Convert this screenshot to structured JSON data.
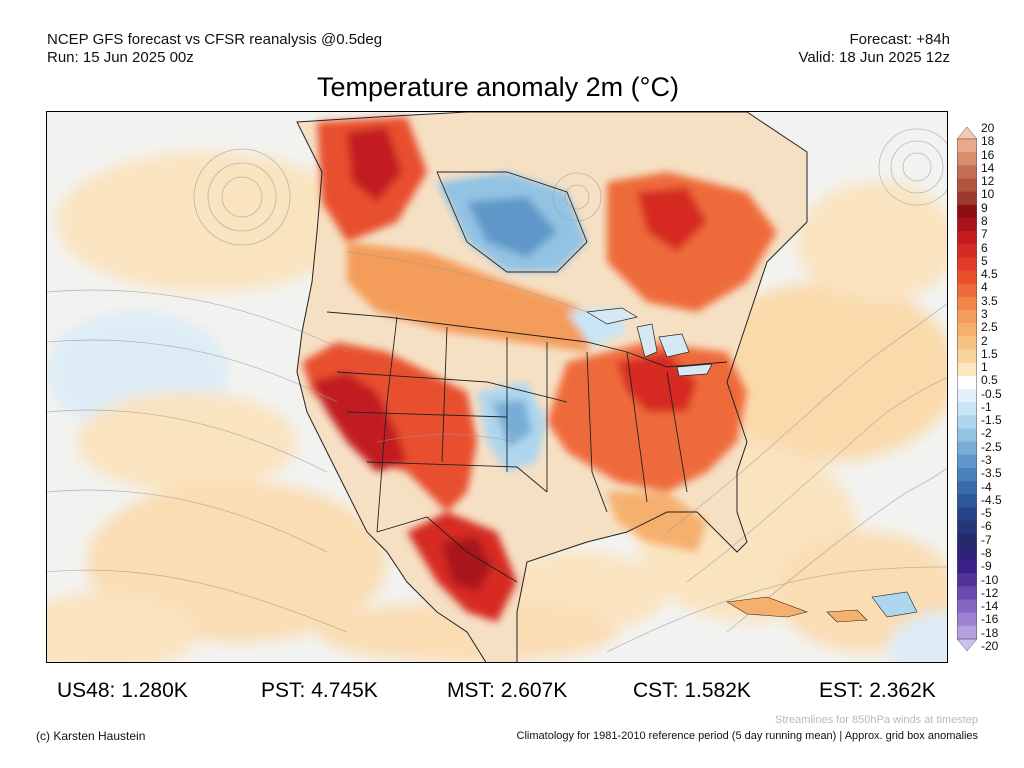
{
  "header": {
    "left_line1": "NCEP GFS forecast vs CFSR reanalysis @0.5deg",
    "left_line2": "Run: 15 Jun 2025 00z",
    "right_line1": "Forecast: +84h",
    "right_line2": "Valid: 18 Jun 2025 12z"
  },
  "title": "Temperature anomaly 2m (°C)",
  "colorbar": {
    "ticks": [
      "20",
      "18",
      "16",
      "14",
      "12",
      "10",
      "9",
      "8",
      "7",
      "6",
      "5",
      "4.5",
      "4",
      "3.5",
      "3",
      "2.5",
      "2",
      "1.5",
      "1",
      "0.5",
      "-0.5",
      "-1",
      "-1.5",
      "-2",
      "-2.5",
      "-3",
      "-3.5",
      "-4",
      "-4.5",
      "-5",
      "-6",
      "-7",
      "-8",
      "-9",
      "-10",
      "-12",
      "-14",
      "-16",
      "-18",
      "-20"
    ],
    "colors": [
      "#f5c8b0",
      "#e8a98c",
      "#d98c6e",
      "#c46f54",
      "#b0553f",
      "#9e3a2b",
      "#8e0f12",
      "#a8121a",
      "#c21c20",
      "#d62a24",
      "#e03a2a",
      "#e8502e",
      "#ef6a3a",
      "#f28548",
      "#f49c5a",
      "#f6b06e",
      "#f8c382",
      "#fad39c",
      "#fce6bf",
      "#ffffff",
      "#e2f1fb",
      "#c9e6f6",
      "#aed6ee",
      "#93c3e3",
      "#78add6",
      "#5f97c8",
      "#4b80ba",
      "#3a6aaa",
      "#2e5699",
      "#25448a",
      "#233679",
      "#262a6b",
      "#2e2177",
      "#3a2088",
      "#52339a",
      "#6b4bb0",
      "#8466c4",
      "#9c83d4",
      "#b5a1e2",
      "#cdc0ee"
    ]
  },
  "stats": [
    {
      "label": "US48:",
      "value": "1.280K"
    },
    {
      "label": "PST:",
      "value": "4.745K"
    },
    {
      "label": "MST:",
      "value": "2.607K"
    },
    {
      "label": "CST:",
      "value": "1.582K"
    },
    {
      "label": "EST:",
      "value": "2.362K"
    }
  ],
  "footer": {
    "streamlines_note": "Streamlines for 850hPa winds at timestep",
    "copyright": "(c) Karsten Haustein",
    "climatology_note": "Climatology for 1981-2010 reference period (5 day running mean) | Approx. grid box anomalies"
  }
}
